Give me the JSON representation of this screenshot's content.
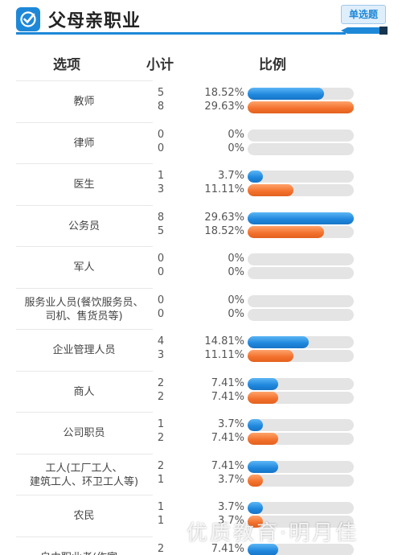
{
  "header": {
    "title": "父母亲职业",
    "tag": "单选题"
  },
  "columns": {
    "option": "选项",
    "subtotal": "小计",
    "ratio": "比例"
  },
  "colors": {
    "accent": "#1e88d8",
    "series_1": "#1e86dc",
    "series_2": "#f2702c",
    "track": "#e4e4e4"
  },
  "rows": [
    {
      "label": [
        "教师"
      ],
      "values": [
        {
          "count": "5",
          "pct": "18.52%",
          "ratio": 0.1852
        },
        {
          "count": "8",
          "pct": "29.63%",
          "ratio": 0.2963
        }
      ]
    },
    {
      "label": [
        "律师"
      ],
      "values": [
        {
          "count": "0",
          "pct": "0%",
          "ratio": 0
        },
        {
          "count": "0",
          "pct": "0%",
          "ratio": 0
        }
      ]
    },
    {
      "label": [
        "医生"
      ],
      "values": [
        {
          "count": "1",
          "pct": "3.7%",
          "ratio": 0.037
        },
        {
          "count": "3",
          "pct": "11.11%",
          "ratio": 0.1111
        }
      ]
    },
    {
      "label": [
        "公务员"
      ],
      "values": [
        {
          "count": "8",
          "pct": "29.63%",
          "ratio": 0.2963
        },
        {
          "count": "5",
          "pct": "18.52%",
          "ratio": 0.1852
        }
      ]
    },
    {
      "label": [
        "军人"
      ],
      "values": [
        {
          "count": "0",
          "pct": "0%",
          "ratio": 0
        },
        {
          "count": "0",
          "pct": "0%",
          "ratio": 0
        }
      ]
    },
    {
      "label": [
        "服务业人员(餐饮服务员、",
        "司机、售货员等)"
      ],
      "values": [
        {
          "count": "0",
          "pct": "0%",
          "ratio": 0
        },
        {
          "count": "0",
          "pct": "0%",
          "ratio": 0
        }
      ]
    },
    {
      "label": [
        "企业管理人员"
      ],
      "values": [
        {
          "count": "4",
          "pct": "14.81%",
          "ratio": 0.1481
        },
        {
          "count": "3",
          "pct": "11.11%",
          "ratio": 0.1111
        }
      ]
    },
    {
      "label": [
        "商人"
      ],
      "values": [
        {
          "count": "2",
          "pct": "7.41%",
          "ratio": 0.0741
        },
        {
          "count": "2",
          "pct": "7.41%",
          "ratio": 0.0741
        }
      ]
    },
    {
      "label": [
        "公司职员"
      ],
      "values": [
        {
          "count": "1",
          "pct": "3.7%",
          "ratio": 0.037
        },
        {
          "count": "2",
          "pct": "7.41%",
          "ratio": 0.0741
        }
      ]
    },
    {
      "label": [
        "工人(工厂工人、",
        "建筑工人、环卫工人等)"
      ],
      "values": [
        {
          "count": "2",
          "pct": "7.41%",
          "ratio": 0.0741
        },
        {
          "count": "1",
          "pct": "3.7%",
          "ratio": 0.037
        }
      ]
    },
    {
      "label": [
        "农民"
      ],
      "values": [
        {
          "count": "1",
          "pct": "3.7%",
          "ratio": 0.037
        },
        {
          "count": "1",
          "pct": "3.7%",
          "ratio": 0.037
        }
      ]
    },
    {
      "label": [
        "自由职业者(作家、"
      ],
      "values": [
        {
          "count": "2",
          "pct": "7.41%",
          "ratio": 0.0741
        }
      ]
    }
  ],
  "watermark": "优质教育·明月佳"
}
